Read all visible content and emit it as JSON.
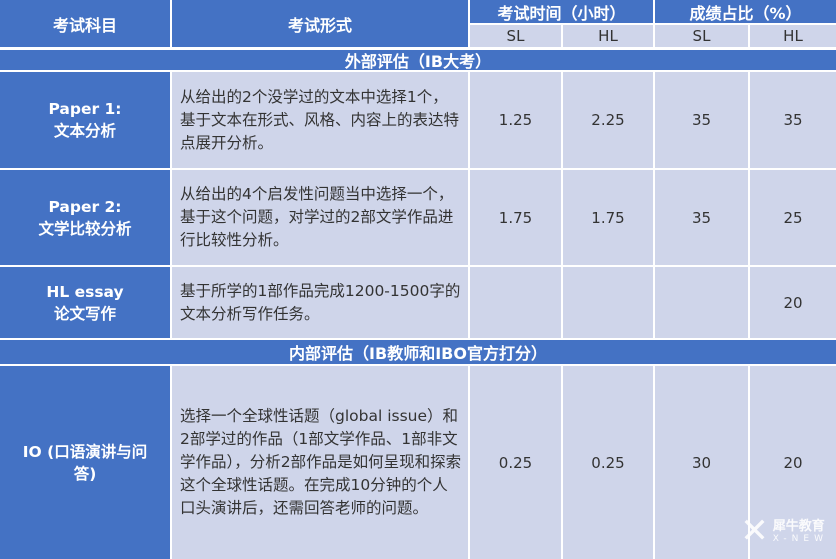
{
  "header": {
    "subject": "考试科目",
    "form": "考试形式",
    "time": "考试时间（小时）",
    "weight": "成绩占比（%）",
    "sl": "SL",
    "hl": "HL"
  },
  "sections": [
    {
      "title": "外部评估（IB大考）"
    },
    {
      "title": "内部评估（IB教师和IBO官方打分）"
    }
  ],
  "rows": [
    {
      "subject_line1": "Paper 1:",
      "subject_line2": "文本分析",
      "form": "从给出的2个没学过的文本中选择1个，基于文本在形式、风格、内容上的表达特点展开分析。",
      "time_sl": "1.25",
      "time_hl": "2.25",
      "weight_sl": "35",
      "weight_hl": "35"
    },
    {
      "subject_line1": "Paper 2:",
      "subject_line2": "文学比较分析",
      "form": "从给出的4个启发性问题当中选择一个，基于这个问题，对学过的2部文学作品进行比较性分析。",
      "time_sl": "1.75",
      "time_hl": "1.75",
      "weight_sl": "35",
      "weight_hl": "25"
    },
    {
      "subject_line1": "HL essay",
      "subject_line2": "论文写作",
      "form": "基于所学的1部作品完成1200-1500字的文本分析写作任务。",
      "time_sl": "",
      "time_hl": "",
      "weight_sl": "",
      "weight_hl": "20"
    },
    {
      "subject_line1": "IO (口语演讲与问",
      "subject_line2": "答)",
      "form": "选择一个全球性话题（global issue）和2部学过的作品（1部文学作品、1部非文学作品），分析2部作品是如何呈现和探索这个全球性话题。在完成10分钟的个人口头演讲后，还需回答老师的问题。",
      "time_sl": "0.25",
      "time_hl": "0.25",
      "weight_sl": "30",
      "weight_hl": "20"
    }
  ],
  "watermark": {
    "brand": "犀牛教育",
    "sub": "X-NEW"
  },
  "colors": {
    "header": "#4472c4",
    "cell": "#cfd5ea"
  }
}
